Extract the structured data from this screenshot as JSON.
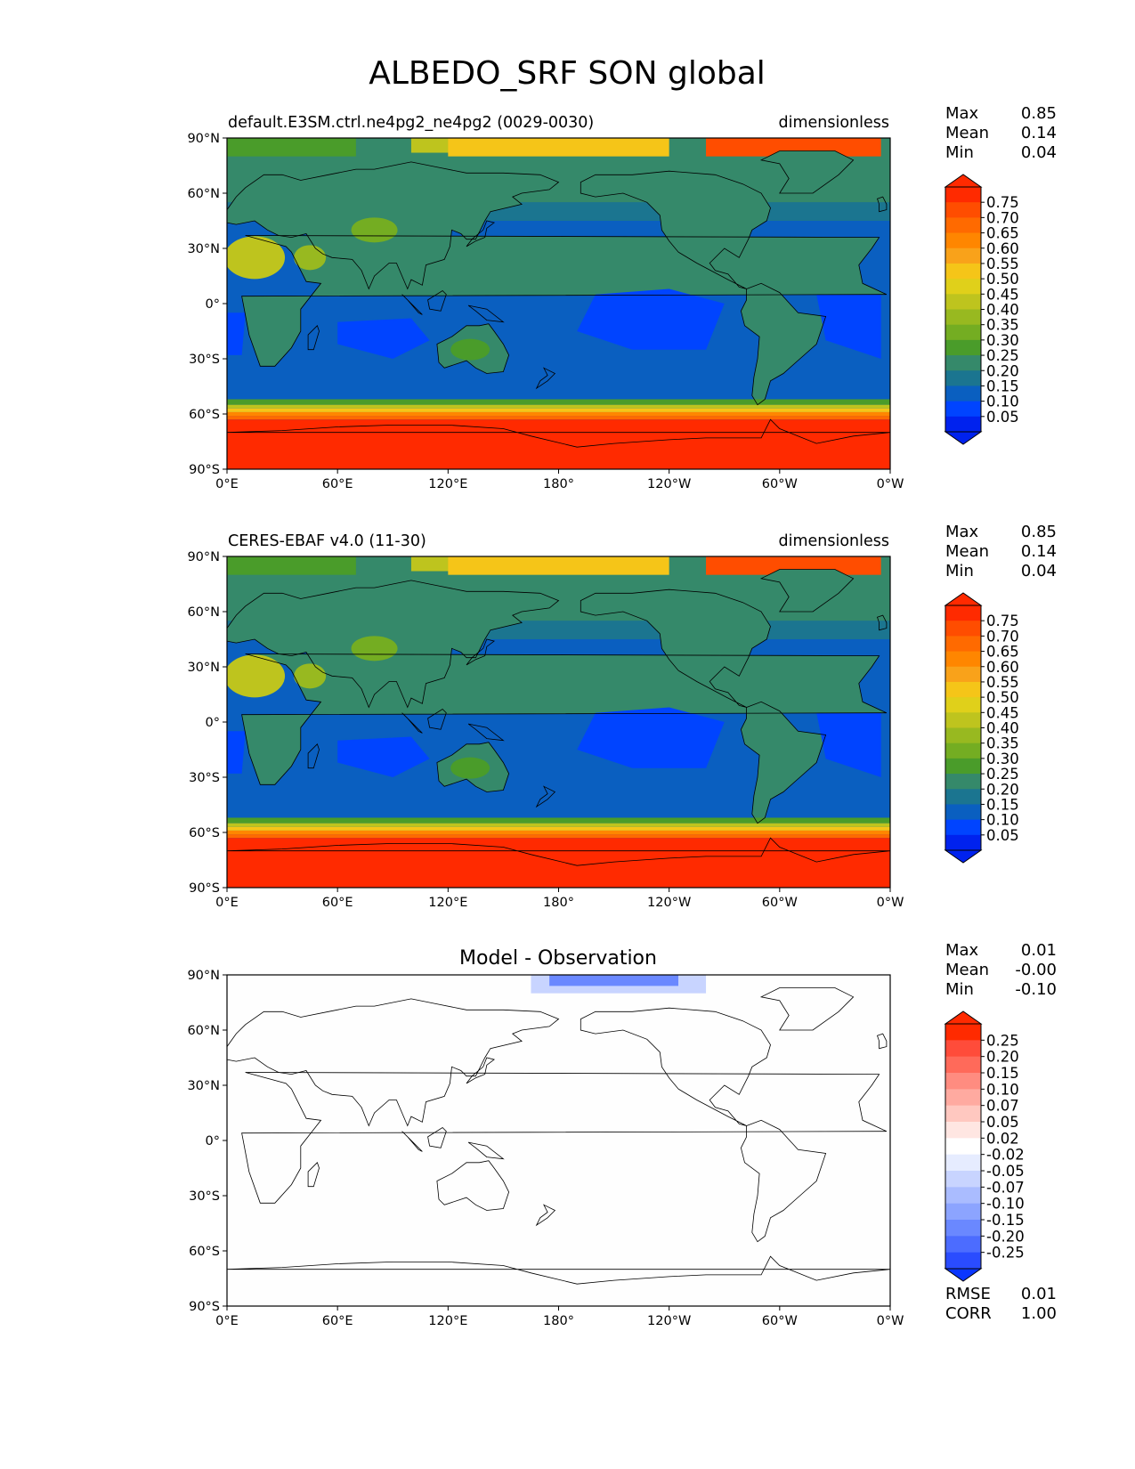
{
  "figure": {
    "title": "ALBEDO_SRF SON global",
    "lat_ticks": [
      "90°N",
      "60°N",
      "30°N",
      "0°",
      "30°S",
      "60°S",
      "90°S"
    ],
    "lon_ticks": [
      "0°E",
      "60°E",
      "120°E",
      "180°",
      "120°W",
      "60°W",
      "0°W"
    ]
  },
  "panels": [
    {
      "id": "model",
      "title_left": "default.E3SM.ctrl.ne4pg2_ne4pg2 (0029-0030)",
      "title_center": "",
      "title_right": "dimensionless",
      "stats": [
        [
          "Max",
          "0.85"
        ],
        [
          "Mean",
          "0.14"
        ],
        [
          "Min",
          "0.04"
        ]
      ],
      "colorbar": {
        "labels": [
          "0.75",
          "0.70",
          "0.65",
          "0.60",
          "0.55",
          "0.50",
          "0.45",
          "0.40",
          "0.35",
          "0.30",
          "0.25",
          "0.20",
          "0.15",
          "0.10",
          "0.05"
        ],
        "colors": [
          "#ff2a00",
          "#ff4d00",
          "#ff6a00",
          "#ff8600",
          "#f9a21a",
          "#f5c518",
          "#e0d01a",
          "#bec41e",
          "#98b920",
          "#74ad22",
          "#4a9c2a",
          "#35896a",
          "#1b7590",
          "#0a5fc0",
          "#0044ff",
          "#0022ee"
        ],
        "top_arrow": "#ff2a00",
        "bottom_arrow": "#0022ee"
      },
      "map_kind": "model"
    },
    {
      "id": "obs",
      "title_left": "CERES-EBAF v4.0 (11-30)",
      "title_center": "",
      "title_right": "dimensionless",
      "stats": [
        [
          "Max",
          "0.85"
        ],
        [
          "Mean",
          "0.14"
        ],
        [
          "Min",
          "0.04"
        ]
      ],
      "colorbar": {
        "labels": [
          "0.75",
          "0.70",
          "0.65",
          "0.60",
          "0.55",
          "0.50",
          "0.45",
          "0.40",
          "0.35",
          "0.30",
          "0.25",
          "0.20",
          "0.15",
          "0.10",
          "0.05"
        ],
        "colors": [
          "#ff2a00",
          "#ff4d00",
          "#ff6a00",
          "#ff8600",
          "#f9a21a",
          "#f5c518",
          "#e0d01a",
          "#bec41e",
          "#98b920",
          "#74ad22",
          "#4a9c2a",
          "#35896a",
          "#1b7590",
          "#0a5fc0",
          "#0044ff",
          "#0022ee"
        ],
        "top_arrow": "#ff2a00",
        "bottom_arrow": "#0022ee"
      },
      "map_kind": "obs"
    },
    {
      "id": "diff",
      "title_left": "",
      "title_center": "Model - Observation",
      "title_right": "",
      "stats": [
        [
          "Max",
          "0.01"
        ],
        [
          "Mean",
          "-0.00"
        ],
        [
          "Min",
          "-0.10"
        ]
      ],
      "colorbar": {
        "labels": [
          "0.25",
          "0.20",
          "0.15",
          "0.10",
          "0.07",
          "0.05",
          "0.02",
          "-0.02",
          "-0.05",
          "-0.07",
          "-0.10",
          "-0.15",
          "-0.20",
          "-0.25"
        ],
        "colors": [
          "#ff2a00",
          "#ff4c3a",
          "#ff6a5a",
          "#ff8c80",
          "#ffaaa0",
          "#ffc8c0",
          "#ffe6e2",
          "#ffffff",
          "#e6ecff",
          "#c8d4ff",
          "#aabcff",
          "#8ca4ff",
          "#6a88ff",
          "#4c6cff",
          "#2a4cff"
        ],
        "top_arrow": "#ff2a00",
        "bottom_arrow": "#0a36ff"
      },
      "extra_stats": [
        [
          "RMSE",
          "0.01"
        ],
        [
          "CORR",
          "1.00"
        ]
      ],
      "map_kind": "diff"
    }
  ]
}
